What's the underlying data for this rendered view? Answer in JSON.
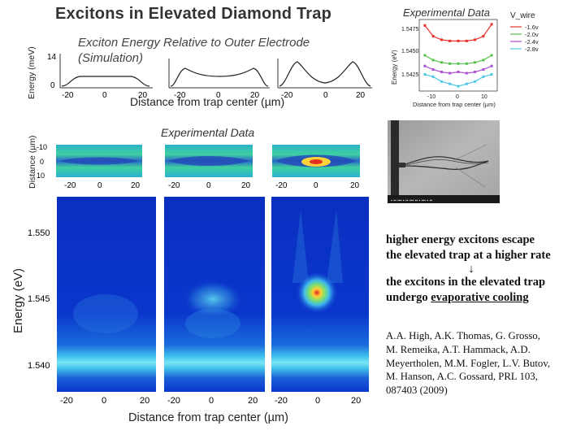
{
  "title": "Excitons in Elevated Diamond Trap",
  "simulation": {
    "title_line1": "Exciton Energy Relative to Outer Electrode",
    "title_line2": "(Simulation)",
    "ylabel": "Energy (meV)",
    "y_ticks": [
      "14",
      "0"
    ],
    "x_ticks": [
      "-20",
      "0",
      "20"
    ],
    "xlabel": "Distance from trap center (µm)"
  },
  "inset": {
    "title": "Experimental Data",
    "legend_title": "V_wire",
    "legend": [
      {
        "label": "-1.6v",
        "color": "#e8322a"
      },
      {
        "label": "-2.0v",
        "color": "#56c24c"
      },
      {
        "label": "-2.4v",
        "color": "#b04cd6"
      },
      {
        "label": "-2.8v",
        "color": "#4fc7e6"
      }
    ],
    "ylabel": "Energy (eV)",
    "y_ticks": [
      "1.5475",
      "1.5450",
      "1.5425"
    ],
    "x_ticks": [
      "-10",
      "0",
      "10"
    ],
    "xlabel": "Distance from trap center (µm)",
    "chart_data": {
      "type": "line",
      "x": [
        -12,
        -9,
        -6,
        -3,
        0,
        3,
        6,
        9,
        12
      ],
      "series": [
        {
          "name": "-1.6v",
          "values": [
            1.5475,
            1.5466,
            1.5463,
            1.5462,
            1.5462,
            1.5462,
            1.5463,
            1.5466,
            1.5476
          ]
        },
        {
          "name": "-2.0v",
          "values": [
            1.545,
            1.5446,
            1.5444,
            1.5443,
            1.5443,
            1.5443,
            1.5444,
            1.5446,
            1.545
          ]
        },
        {
          "name": "-2.4v",
          "values": [
            1.5441,
            1.5438,
            1.5436,
            1.5435,
            1.5436,
            1.5435,
            1.5436,
            1.5438,
            1.5441
          ]
        },
        {
          "name": "-2.8v",
          "values": [
            1.5434,
            1.5432,
            1.5428,
            1.5426,
            1.5424,
            1.5426,
            1.5428,
            1.5432,
            1.5434
          ]
        }
      ],
      "ylim": [
        1.542,
        1.548
      ],
      "xlim": [
        -14,
        14
      ]
    }
  },
  "experimental": {
    "title": "Experimental Data",
    "image_ylabel": "Distance (µm)",
    "image_y_ticks": [
      "-10",
      "0",
      "10"
    ],
    "x_ticks": [
      "-20",
      "0",
      "20"
    ]
  },
  "spectra": {
    "ylabel": "Energy (eV)",
    "y_ticks": [
      "1.550",
      "1.545",
      "1.540"
    ],
    "x_ticks": [
      "-20",
      "0",
      "20"
    ],
    "xlabel": "Distance from trap center (µm)"
  },
  "explanation": {
    "line1": "higher energy excitons escape",
    "line2": "the elevated trap at a higher rate",
    "arrow": "↓",
    "line3": "the excitons in the elevated trap",
    "line4_prefix": "undergo ",
    "line4_underlined": "evaporative cooling"
  },
  "citation": {
    "line1": "A.A. High, A.K. Thomas, G. Grosso,",
    "line2": "M. Remeika, A.T. Hammack, A.D.",
    "line3": "Meyertholen, M.M. Fogler, L.V. Butov,",
    "line4": "M. Hanson, A.C. Gossard, PRL 103,",
    "line5": "087403 (2009)"
  }
}
